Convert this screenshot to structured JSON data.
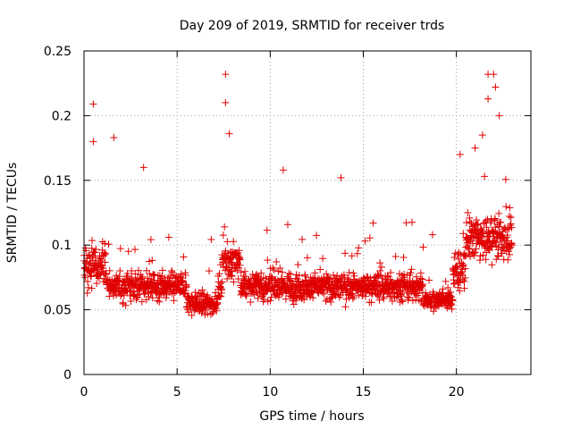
{
  "chart_data": {
    "type": "scatter",
    "title": "Day 209 of 2019, SRMTID for receiver trds",
    "xlabel": "GPS time / hours",
    "ylabel": "SRMTID / TECUs",
    "xlim": [
      0,
      24
    ],
    "ylim": [
      0,
      0.25
    ],
    "x_ticks": [
      0,
      5,
      10,
      15,
      20
    ],
    "x_tick_labels": [
      "0",
      "5",
      "10",
      "15",
      "20"
    ],
    "y_ticks": [
      0,
      0.05,
      0.1,
      0.15,
      0.2,
      0.25
    ],
    "y_tick_labels": [
      "0",
      "0.05",
      "0.1",
      "0.15",
      "0.2",
      "0.25"
    ],
    "grid": true,
    "marker": "+",
    "series_color": "#e00000",
    "data_x_range": [
      0,
      23
    ],
    "point_count": 1800,
    "typical_band": [
      0.03,
      0.11
    ],
    "notable_points": [
      {
        "x": 0.5,
        "y": 0.209
      },
      {
        "x": 0.5,
        "y": 0.18
      },
      {
        "x": 1.6,
        "y": 0.183
      },
      {
        "x": 3.2,
        "y": 0.16
      },
      {
        "x": 7.6,
        "y": 0.232
      },
      {
        "x": 7.6,
        "y": 0.21
      },
      {
        "x": 7.8,
        "y": 0.186
      },
      {
        "x": 10.7,
        "y": 0.158
      },
      {
        "x": 13.8,
        "y": 0.152
      },
      {
        "x": 20.2,
        "y": 0.17
      },
      {
        "x": 21.0,
        "y": 0.175
      },
      {
        "x": 21.4,
        "y": 0.185
      },
      {
        "x": 21.7,
        "y": 0.232
      },
      {
        "x": 21.7,
        "y": 0.213
      },
      {
        "x": 22.0,
        "y": 0.232
      },
      {
        "x": 22.1,
        "y": 0.222
      },
      {
        "x": 22.3,
        "y": 0.2
      }
    ]
  }
}
